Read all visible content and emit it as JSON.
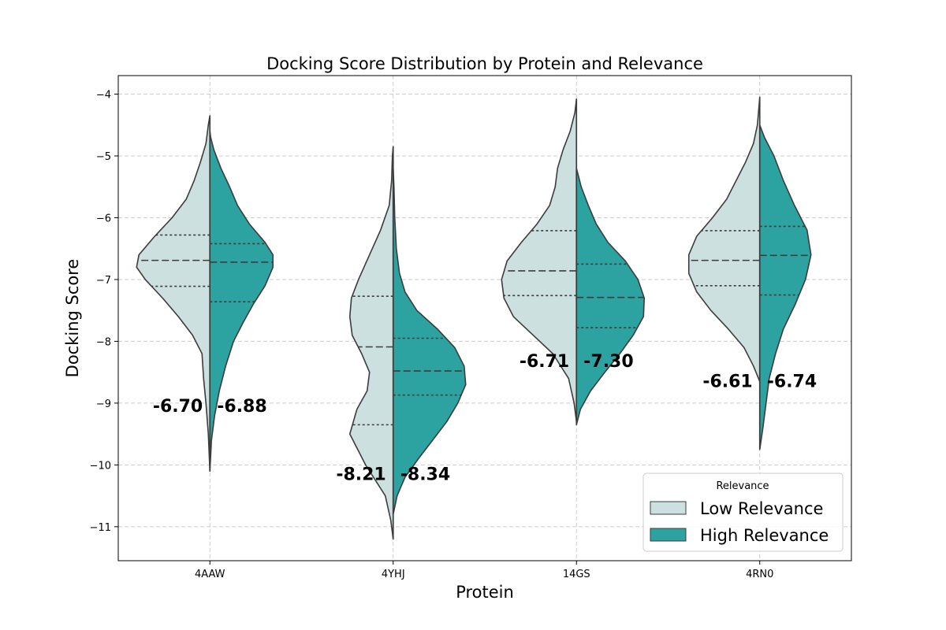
{
  "chart_data": {
    "type": "split-violin",
    "title": "Docking Score Distribution by Protein and Relevance",
    "xlabel": "Protein",
    "ylabel": "Docking Score",
    "categories": [
      "4AAW",
      "4YHJ",
      "14GS",
      "4RN0"
    ],
    "ylim": [
      -11.55,
      -3.7
    ],
    "yticks": [
      -4,
      -5,
      -6,
      -7,
      -8,
      -9,
      -10,
      -11
    ],
    "grid": true,
    "legend": {
      "title": "Relevance",
      "position": "lower-right"
    },
    "series": [
      {
        "name": "Low Relevance",
        "color": "#cce0e0",
        "violins": [
          {
            "q1": -7.11,
            "median": -6.69,
            "q3": -6.28,
            "mean_label": "-6.70",
            "profile": [
              [
                -10.1,
                0.0
              ],
              [
                -9.5,
                0.02
              ],
              [
                -9.0,
                0.05
              ],
              [
                -8.6,
                0.08
              ],
              [
                -8.2,
                0.1
              ],
              [
                -7.9,
                0.22
              ],
              [
                -7.6,
                0.4
              ],
              [
                -7.3,
                0.6
              ],
              [
                -7.0,
                0.82
              ],
              [
                -6.8,
                0.93
              ],
              [
                -6.6,
                0.9
              ],
              [
                -6.3,
                0.7
              ],
              [
                -6.0,
                0.48
              ],
              [
                -5.7,
                0.3
              ],
              [
                -5.4,
                0.2
              ],
              [
                -5.1,
                0.12
              ],
              [
                -4.8,
                0.05
              ],
              [
                -4.5,
                0.02
              ],
              [
                -4.35,
                0.0
              ]
            ]
          },
          {
            "q1": -9.35,
            "median": -8.09,
            "q3": -7.27,
            "mean_label": "-8.21",
            "profile": [
              [
                -11.2,
                0.0
              ],
              [
                -10.9,
                0.03
              ],
              [
                -10.5,
                0.1
              ],
              [
                -10.0,
                0.35
              ],
              [
                -9.5,
                0.55
              ],
              [
                -9.1,
                0.46
              ],
              [
                -8.8,
                0.33
              ],
              [
                -8.5,
                0.3
              ],
              [
                -8.2,
                0.4
              ],
              [
                -7.9,
                0.52
              ],
              [
                -7.6,
                0.55
              ],
              [
                -7.3,
                0.53
              ],
              [
                -7.0,
                0.44
              ],
              [
                -6.6,
                0.3
              ],
              [
                -6.2,
                0.16
              ],
              [
                -5.8,
                0.05
              ],
              [
                -5.4,
                0.02
              ],
              [
                -5.0,
                0.01
              ],
              [
                -4.85,
                0.0
              ]
            ]
          },
          {
            "q1": -7.26,
            "median": -6.86,
            "q3": -6.21,
            "mean_label": "-6.71",
            "profile": [
              [
                -9.3,
                0.0
              ],
              [
                -9.0,
                0.03
              ],
              [
                -8.6,
                0.1
              ],
              [
                -8.2,
                0.3
              ],
              [
                -7.9,
                0.55
              ],
              [
                -7.6,
                0.8
              ],
              [
                -7.3,
                0.92
              ],
              [
                -7.0,
                0.95
              ],
              [
                -6.7,
                0.88
              ],
              [
                -6.4,
                0.7
              ],
              [
                -6.1,
                0.5
              ],
              [
                -5.8,
                0.34
              ],
              [
                -5.5,
                0.27
              ],
              [
                -5.2,
                0.24
              ],
              [
                -4.9,
                0.17
              ],
              [
                -4.6,
                0.08
              ],
              [
                -4.3,
                0.02
              ],
              [
                -4.08,
                0.0
              ]
            ]
          },
          {
            "q1": -7.1,
            "median": -6.69,
            "q3": -6.21,
            "mean_label": "-6.61",
            "profile": [
              [
                -8.65,
                0.0
              ],
              [
                -8.4,
                0.08
              ],
              [
                -8.1,
                0.2
              ],
              [
                -7.8,
                0.4
              ],
              [
                -7.5,
                0.62
              ],
              [
                -7.2,
                0.8
              ],
              [
                -6.9,
                0.9
              ],
              [
                -6.6,
                0.9
              ],
              [
                -6.3,
                0.8
              ],
              [
                -6.0,
                0.6
              ],
              [
                -5.7,
                0.42
              ],
              [
                -5.4,
                0.3
              ],
              [
                -5.1,
                0.18
              ],
              [
                -4.8,
                0.08
              ],
              [
                -4.5,
                0.03
              ],
              [
                -4.2,
                0.01
              ],
              [
                -4.05,
                0.0
              ]
            ]
          }
        ]
      },
      {
        "name": "High Relevance",
        "color": "#2ca3a0",
        "violins": [
          {
            "q1": -7.36,
            "median": -6.72,
            "q3": -6.42,
            "mean_label": "-6.88",
            "profile": [
              [
                -10.1,
                0.0
              ],
              [
                -9.6,
                0.02
              ],
              [
                -9.2,
                0.06
              ],
              [
                -8.8,
                0.12
              ],
              [
                -8.4,
                0.2
              ],
              [
                -8.0,
                0.3
              ],
              [
                -7.7,
                0.42
              ],
              [
                -7.4,
                0.55
              ],
              [
                -7.1,
                0.7
              ],
              [
                -6.8,
                0.8
              ],
              [
                -6.6,
                0.8
              ],
              [
                -6.4,
                0.7
              ],
              [
                -6.1,
                0.5
              ],
              [
                -5.8,
                0.35
              ],
              [
                -5.5,
                0.25
              ],
              [
                -5.2,
                0.14
              ],
              [
                -4.9,
                0.05
              ],
              [
                -4.7,
                0.01
              ],
              [
                -4.6,
                0.0
              ]
            ]
          },
          {
            "q1": -8.87,
            "median": -8.48,
            "q3": -7.95,
            "mean_label": "-8.34",
            "profile": [
              [
                -10.8,
                0.0
              ],
              [
                -10.5,
                0.05
              ],
              [
                -10.2,
                0.15
              ],
              [
                -9.9,
                0.32
              ],
              [
                -9.6,
                0.5
              ],
              [
                -9.3,
                0.68
              ],
              [
                -9.0,
                0.82
              ],
              [
                -8.7,
                0.92
              ],
              [
                -8.4,
                0.9
              ],
              [
                -8.1,
                0.78
              ],
              [
                -7.8,
                0.56
              ],
              [
                -7.5,
                0.3
              ],
              [
                -7.2,
                0.15
              ],
              [
                -6.9,
                0.08
              ],
              [
                -6.5,
                0.04
              ],
              [
                -6.0,
                0.02
              ],
              [
                -5.5,
                0.01
              ],
              [
                -5.2,
                0.0
              ]
            ]
          },
          {
            "q1": -7.78,
            "median": -7.29,
            "q3": -6.75,
            "mean_label": "-7.30",
            "profile": [
              [
                -9.35,
                0.0
              ],
              [
                -9.1,
                0.05
              ],
              [
                -8.8,
                0.18
              ],
              [
                -8.5,
                0.36
              ],
              [
                -8.2,
                0.55
              ],
              [
                -7.9,
                0.72
              ],
              [
                -7.6,
                0.85
              ],
              [
                -7.3,
                0.86
              ],
              [
                -7.0,
                0.78
              ],
              [
                -6.7,
                0.62
              ],
              [
                -6.4,
                0.4
              ],
              [
                -6.1,
                0.25
              ],
              [
                -5.8,
                0.15
              ],
              [
                -5.5,
                0.06
              ],
              [
                -5.3,
                0.02
              ],
              [
                -5.2,
                0.0
              ]
            ]
          },
          {
            "q1": -7.25,
            "median": -6.61,
            "q3": -6.14,
            "mean_label": "-6.74",
            "profile": [
              [
                -9.75,
                0.0
              ],
              [
                -9.4,
                0.04
              ],
              [
                -9.0,
                0.08
              ],
              [
                -8.6,
                0.12
              ],
              [
                -8.2,
                0.2
              ],
              [
                -7.8,
                0.3
              ],
              [
                -7.4,
                0.45
              ],
              [
                -7.0,
                0.58
              ],
              [
                -6.6,
                0.65
              ],
              [
                -6.2,
                0.6
              ],
              [
                -5.8,
                0.44
              ],
              [
                -5.4,
                0.3
              ],
              [
                -5.0,
                0.18
              ],
              [
                -4.7,
                0.06
              ],
              [
                -4.5,
                0.0
              ]
            ]
          }
        ]
      }
    ]
  }
}
